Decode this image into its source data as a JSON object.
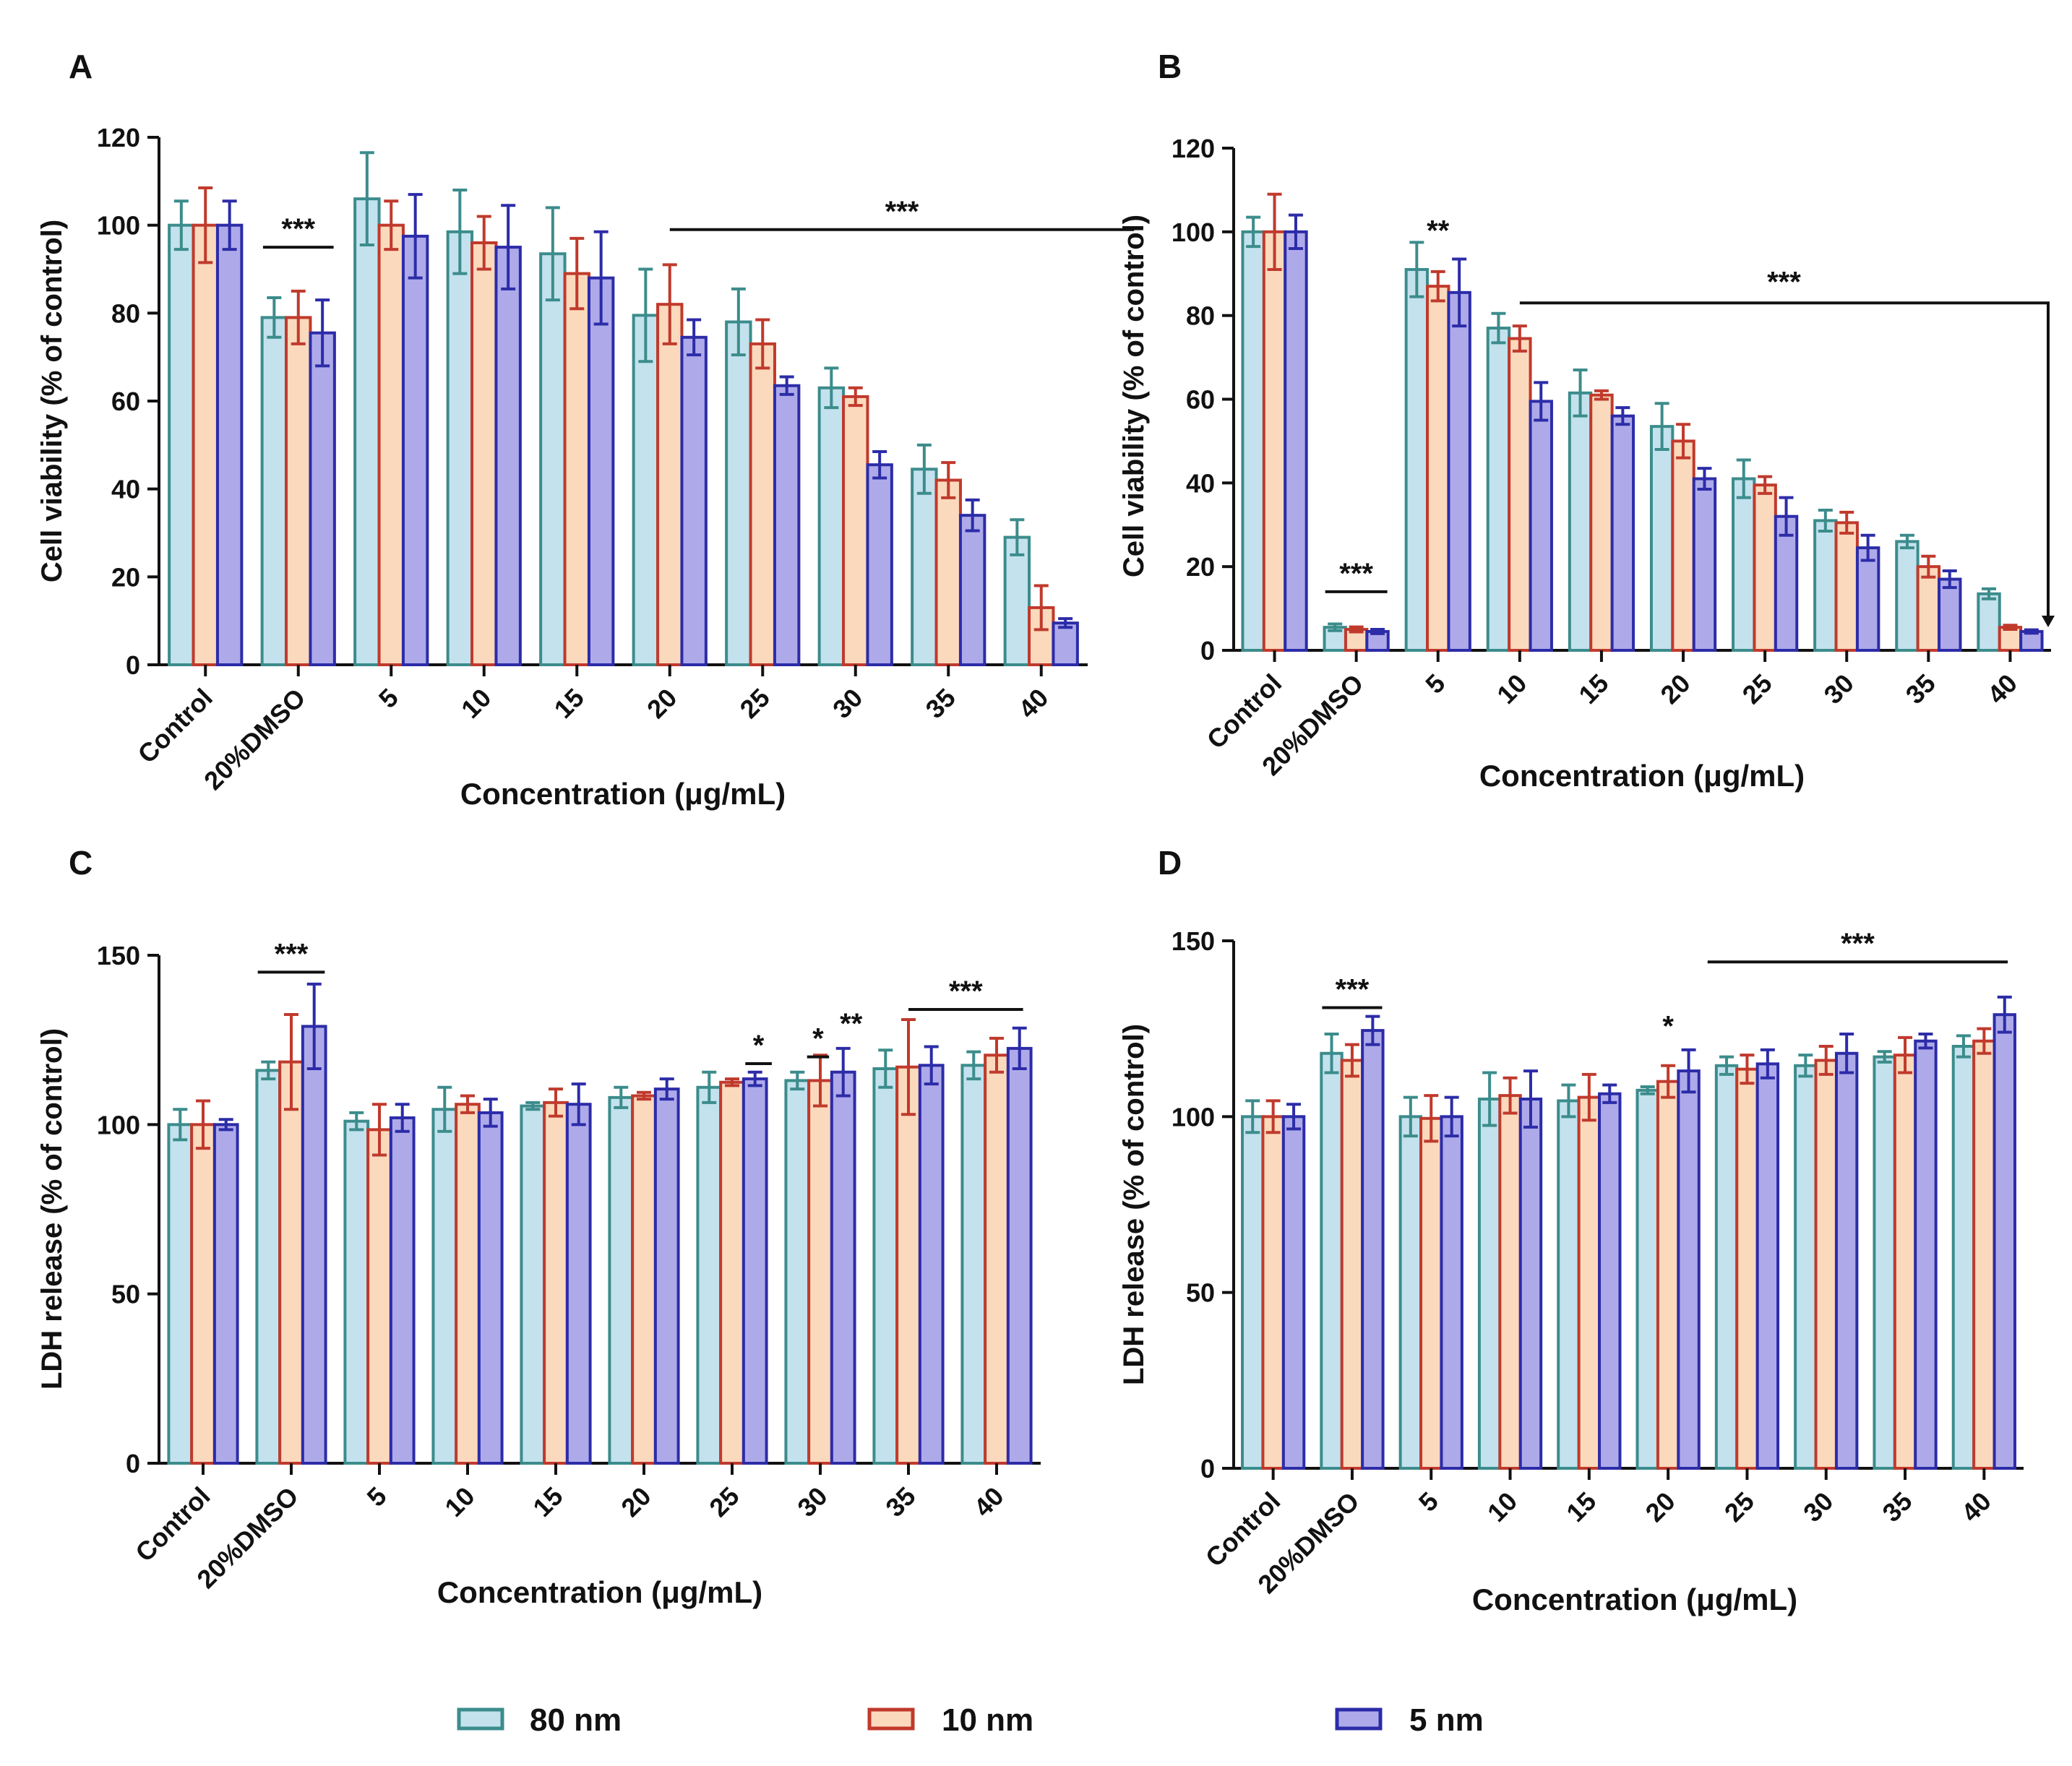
{
  "legend": [
    {
      "name": "80 nm",
      "fill": "#c3e2ee",
      "stroke": "#3c8c8c"
    },
    {
      "name": "10 nm",
      "fill": "#fbd9bd",
      "stroke": "#c03a2c"
    },
    {
      "name": "5 nm",
      "fill": "#aeaaea",
      "stroke": "#2c2ca8"
    }
  ],
  "chart_data": [
    {
      "panel": "A",
      "type": "bar",
      "title": "",
      "xlabel": "Concentration (μg/mL)",
      "ylabel": "Cell viability (% of control)",
      "ylim": [
        0,
        120
      ],
      "yticks": [
        0,
        20,
        40,
        60,
        80,
        100,
        120
      ],
      "categories": [
        "Control",
        "20%DMSO",
        "5",
        "10",
        "15",
        "20",
        "25",
        "30",
        "35",
        "40"
      ],
      "series": [
        {
          "name": "80 nm",
          "values": [
            100,
            79,
            106,
            98.5,
            93.5,
            79.5,
            78,
            63,
            44.5,
            29
          ],
          "errors": [
            5.5,
            4.5,
            10.5,
            9.5,
            10.5,
            10.5,
            7.5,
            4.5,
            5.5,
            4
          ]
        },
        {
          "name": "10 nm",
          "values": [
            100,
            79,
            100,
            96,
            89,
            82,
            73,
            61,
            42,
            13
          ],
          "errors": [
            8.5,
            6,
            5.5,
            6,
            8,
            9,
            5.5,
            2,
            4,
            5
          ]
        },
        {
          "name": "5 nm",
          "values": [
            100,
            75.5,
            97.5,
            95,
            88,
            74.5,
            63.5,
            45.5,
            34,
            9.5
          ],
          "errors": [
            5.5,
            7.5,
            9.5,
            9.5,
            10.5,
            4,
            2,
            3,
            3.5,
            1
          ]
        }
      ],
      "annotations": [
        {
          "text": "***",
          "type": "bar",
          "from": 1,
          "to": 1,
          "y": 95
        },
        {
          "text": "***",
          "type": "bar",
          "from": 5,
          "to": 10,
          "y": 99
        }
      ]
    },
    {
      "panel": "B",
      "type": "bar",
      "title": "",
      "xlabel": "Concentration (μg/mL)",
      "ylabel": "Cell viability (% of control)",
      "ylim": [
        0,
        120
      ],
      "yticks": [
        0,
        20,
        40,
        60,
        80,
        100,
        120
      ],
      "categories": [
        "Control",
        "20%DMSO",
        "5",
        "10",
        "15",
        "20",
        "25",
        "30",
        "35",
        "40"
      ],
      "series": [
        {
          "name": "80 nm",
          "values": [
            100,
            5.5,
            91,
            77,
            61.5,
            53.5,
            41,
            31,
            26,
            13.5
          ],
          "errors": [
            3.5,
            0.8,
            6.5,
            3.5,
            5.5,
            5.5,
            4.5,
            2.5,
            1.5,
            1.2
          ]
        },
        {
          "name": "10 nm",
          "values": [
            100,
            5,
            87,
            74.5,
            61,
            50,
            39.5,
            30.5,
            20,
            5.5
          ],
          "errors": [
            9,
            0.6,
            3.5,
            3,
            1,
            4,
            2,
            2.5,
            2.5,
            0.5
          ]
        },
        {
          "name": "5 nm",
          "values": [
            100,
            4.5,
            85.5,
            59.5,
            56,
            41,
            32,
            24.5,
            17,
            4.5
          ],
          "errors": [
            4,
            0.5,
            8,
            4.5,
            2,
            2.5,
            4.5,
            3,
            2,
            0.4
          ]
        }
      ],
      "annotations": [
        {
          "text": "***",
          "type": "bar",
          "from": 1,
          "to": 1,
          "y": 14
        },
        {
          "text": "**",
          "type": "star",
          "from": 2,
          "to": 2,
          "y": 98
        },
        {
          "text": "***",
          "type": "bracket",
          "from": 3,
          "to": 9,
          "y": 83
        }
      ]
    },
    {
      "panel": "C",
      "type": "bar",
      "title": "",
      "xlabel": "Concentration (μg/mL)",
      "ylabel": "LDH release (% of control)",
      "ylim": [
        0,
        150
      ],
      "yticks": [
        0,
        50,
        100,
        150
      ],
      "categories": [
        "Control",
        "20%DMSO",
        "5",
        "10",
        "15",
        "20",
        "25",
        "30",
        "35",
        "40"
      ],
      "series": [
        {
          "name": "80 nm",
          "values": [
            100,
            116,
            101,
            104.5,
            105.5,
            108,
            111,
            113,
            116.5,
            117.5
          ],
          "errors": [
            4.5,
            2.5,
            2.5,
            6.5,
            1,
            3,
            4.5,
            2.5,
            5.5,
            4
          ]
        },
        {
          "name": "10 nm",
          "values": [
            100,
            118.5,
            98.5,
            106,
            106.5,
            108.5,
            112.5,
            113,
            117,
            120.5
          ],
          "errors": [
            7,
            14,
            7.5,
            2.5,
            4,
            1,
            1,
            7.5,
            14,
            5
          ]
        },
        {
          "name": "5 nm",
          "values": [
            100,
            129,
            102,
            103.5,
            106,
            110.5,
            113.5,
            115.5,
            117.5,
            122.5
          ],
          "errors": [
            1.5,
            12.5,
            4,
            4,
            6,
            3,
            2,
            7,
            5.5,
            6
          ]
        }
      ],
      "annotations": [
        {
          "text": "***",
          "type": "bar",
          "from": 1,
          "to": 1,
          "y": 145
        },
        {
          "text": "*",
          "type": "bar",
          "from": 6.15,
          "to": 6.45,
          "y": 118
        },
        {
          "text": "*",
          "type": "bar",
          "from": 6.85,
          "to": 7.1,
          "y": 120
        },
        {
          "text": "**",
          "type": "star",
          "from": 7.35,
          "to": 7.35,
          "y": 127
        },
        {
          "text": "***",
          "type": "bar",
          "from": 8,
          "to": 9.3,
          "y": 134
        }
      ]
    },
    {
      "panel": "D",
      "type": "bar",
      "title": "",
      "xlabel": "Concentration (μg/mL)",
      "ylabel": "LDH release (% of control)",
      "ylim": [
        0,
        150
      ],
      "yticks": [
        0,
        50,
        100,
        150
      ],
      "categories": [
        "Control",
        "20%DMSO",
        "5",
        "10",
        "15",
        "20",
        "25",
        "30",
        "35",
        "40"
      ],
      "series": [
        {
          "name": "80 nm",
          "values": [
            100,
            118,
            100,
            105,
            104.5,
            107.5,
            114.5,
            114.5,
            117,
            120
          ],
          "errors": [
            4.5,
            5.5,
            5.5,
            7.5,
            4.5,
            1,
            2.5,
            3,
            1.5,
            3
          ]
        },
        {
          "name": "10 nm",
          "values": [
            100,
            116,
            99.5,
            106,
            105.5,
            110,
            113.5,
            116,
            117.5,
            121.5
          ],
          "errors": [
            4.5,
            4.5,
            6.5,
            5,
            6.5,
            4.5,
            4,
            4,
            5,
            3.5
          ]
        },
        {
          "name": "5 nm",
          "values": [
            100,
            124.5,
            100,
            105,
            106.5,
            113,
            115,
            118,
            121.5,
            129
          ],
          "errors": [
            3.5,
            4,
            5.5,
            8,
            2.5,
            6,
            4,
            5.5,
            2,
            5
          ]
        }
      ],
      "annotations": [
        {
          "text": "***",
          "type": "bar",
          "from": 1,
          "to": 1,
          "y": 131
        },
        {
          "text": "*",
          "type": "star",
          "from": 5,
          "to": 5,
          "y": 123
        },
        {
          "text": "***",
          "type": "bar",
          "from": 5.5,
          "to": 9.3,
          "y": 144
        }
      ]
    }
  ],
  "panel_labels": [
    "A",
    "B",
    "C",
    "D"
  ]
}
